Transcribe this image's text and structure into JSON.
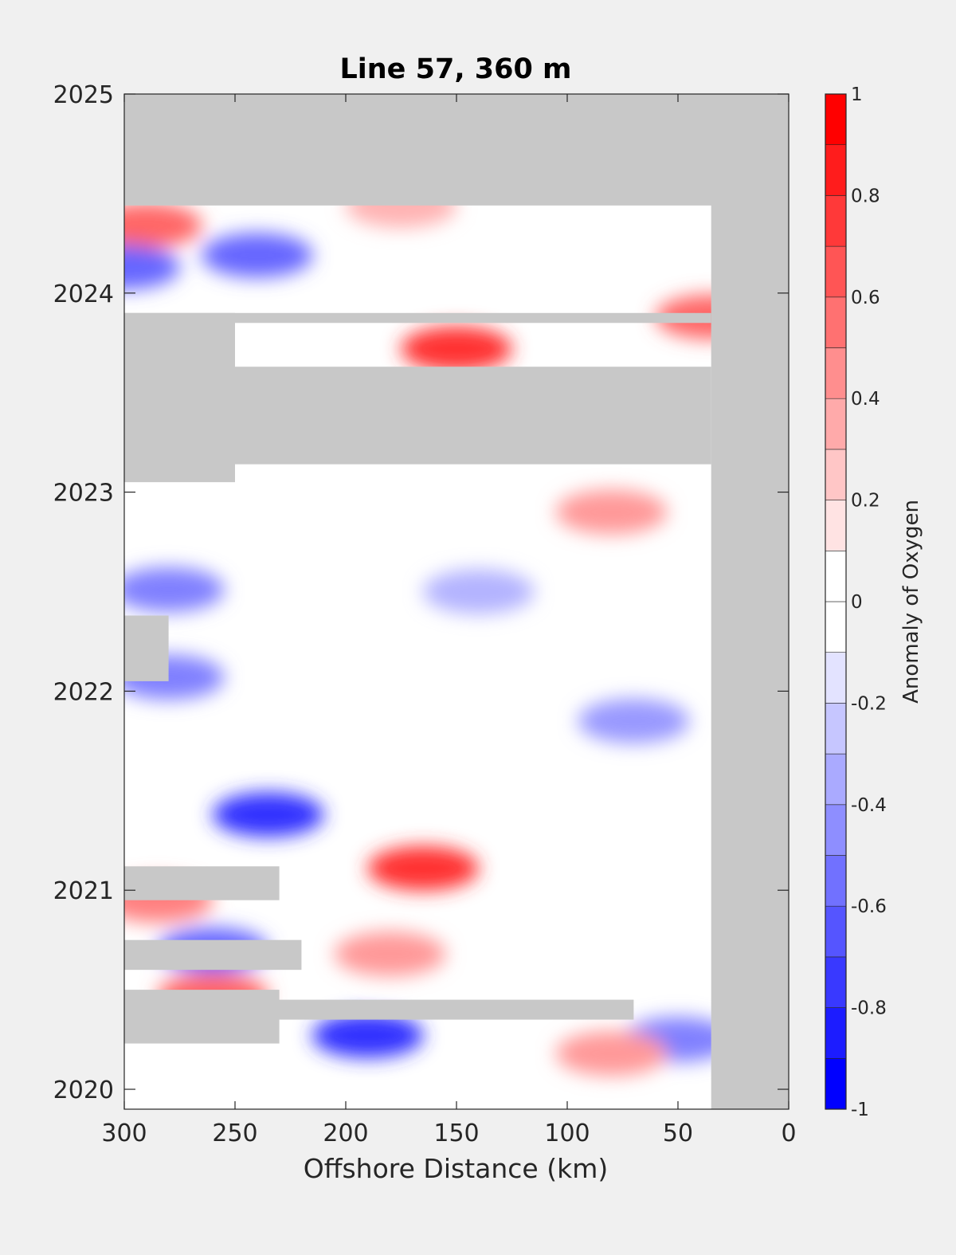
{
  "chart_data": {
    "type": "heatmap",
    "title": "Line 57, 360 m",
    "xlabel": "Offshore Distance (km)",
    "ylabel": "",
    "x_reversed": true,
    "xlim": [
      0,
      300
    ],
    "ylim": [
      2019.9,
      2025
    ],
    "x_ticks": [
      300,
      250,
      200,
      150,
      100,
      50,
      0
    ],
    "y_ticks": [
      2020,
      2021,
      2022,
      2023,
      2024,
      2025
    ],
    "grid": false,
    "colorbar": {
      "label": "Anomaly of Oxygen",
      "range": [
        -1,
        1
      ],
      "levels": [
        -1,
        -0.9,
        -0.8,
        -0.7,
        -0.6,
        -0.5,
        -0.4,
        -0.3,
        -0.2,
        -0.1,
        0,
        0.1,
        0.2,
        0.3,
        0.4,
        0.5,
        0.6,
        0.7,
        0.8,
        0.9,
        1
      ],
      "tick_values": [
        1,
        0.8,
        0.6,
        0.4,
        0.2,
        0,
        -0.2,
        -0.4,
        -0.6,
        -0.8,
        -1
      ],
      "tick_labels": [
        "1",
        "0.8",
        "0.6",
        "0.4",
        "0.2",
        "0",
        "-0.2",
        "-0.4",
        "-0.6",
        "-0.8",
        "-1"
      ],
      "colormap": "blue-white-red",
      "neg_color": "#0000ff",
      "zero_color": "#ffffff",
      "pos_color": "#ff0000"
    },
    "nodata_color": "#c8c8c8",
    "data_extent": {
      "x": [
        35,
        300
      ],
      "y": [
        2019.95,
        2024.44
      ]
    },
    "nodata_bands": [
      {
        "x": [
          0,
          300
        ],
        "y": [
          2024.44,
          2025
        ]
      },
      {
        "x": [
          0,
          35
        ],
        "y": [
          2019.9,
          2025
        ]
      },
      {
        "x": [
          35,
          300
        ],
        "y": [
          2023.85,
          2023.9
        ]
      },
      {
        "x": [
          35,
          300
        ],
        "y": [
          2023.14,
          2023.63
        ]
      },
      {
        "x": [
          250,
          300
        ],
        "y": [
          2023.05,
          2023.9
        ]
      },
      {
        "x": [
          280,
          300
        ],
        "y": [
          2022.05,
          2022.38
        ]
      },
      {
        "x": [
          230,
          300
        ],
        "y": [
          2020.95,
          2021.12
        ]
      },
      {
        "x": [
          220,
          300
        ],
        "y": [
          2020.6,
          2020.75
        ]
      },
      {
        "x": [
          70,
          300
        ],
        "y": [
          2020.35,
          2020.45
        ]
      },
      {
        "x": [
          230,
          300
        ],
        "y": [
          2020.23,
          2020.5
        ]
      }
    ],
    "anomaly_features": [
      {
        "x": 290,
        "y": 2024.34,
        "value": 0.6
      },
      {
        "x": 240,
        "y": 2024.19,
        "value": -0.6
      },
      {
        "x": 300,
        "y": 2024.13,
        "value": -0.6
      },
      {
        "x": 150,
        "y": 2023.72,
        "value": 0.8
      },
      {
        "x": 35,
        "y": 2023.88,
        "value": 0.6
      },
      {
        "x": 175,
        "y": 2024.44,
        "value": 0.3
      },
      {
        "x": 280,
        "y": 2022.51,
        "value": -0.5
      },
      {
        "x": 80,
        "y": 2022.9,
        "value": 0.4
      },
      {
        "x": 280,
        "y": 2022.07,
        "value": -0.5
      },
      {
        "x": 70,
        "y": 2021.85,
        "value": -0.4
      },
      {
        "x": 235,
        "y": 2021.38,
        "value": -0.8
      },
      {
        "x": 165,
        "y": 2021.11,
        "value": 0.8
      },
      {
        "x": 285,
        "y": 2020.95,
        "value": 0.5
      },
      {
        "x": 260,
        "y": 2020.7,
        "value": -0.6
      },
      {
        "x": 190,
        "y": 2020.27,
        "value": -0.8
      },
      {
        "x": 260,
        "y": 2020.47,
        "value": 0.6
      },
      {
        "x": 50,
        "y": 2020.25,
        "value": -0.5
      },
      {
        "x": 180,
        "y": 2020.68,
        "value": 0.4
      },
      {
        "x": 80,
        "y": 2020.18,
        "value": 0.4
      },
      {
        "x": 140,
        "y": 2022.5,
        "value": -0.3
      }
    ]
  }
}
